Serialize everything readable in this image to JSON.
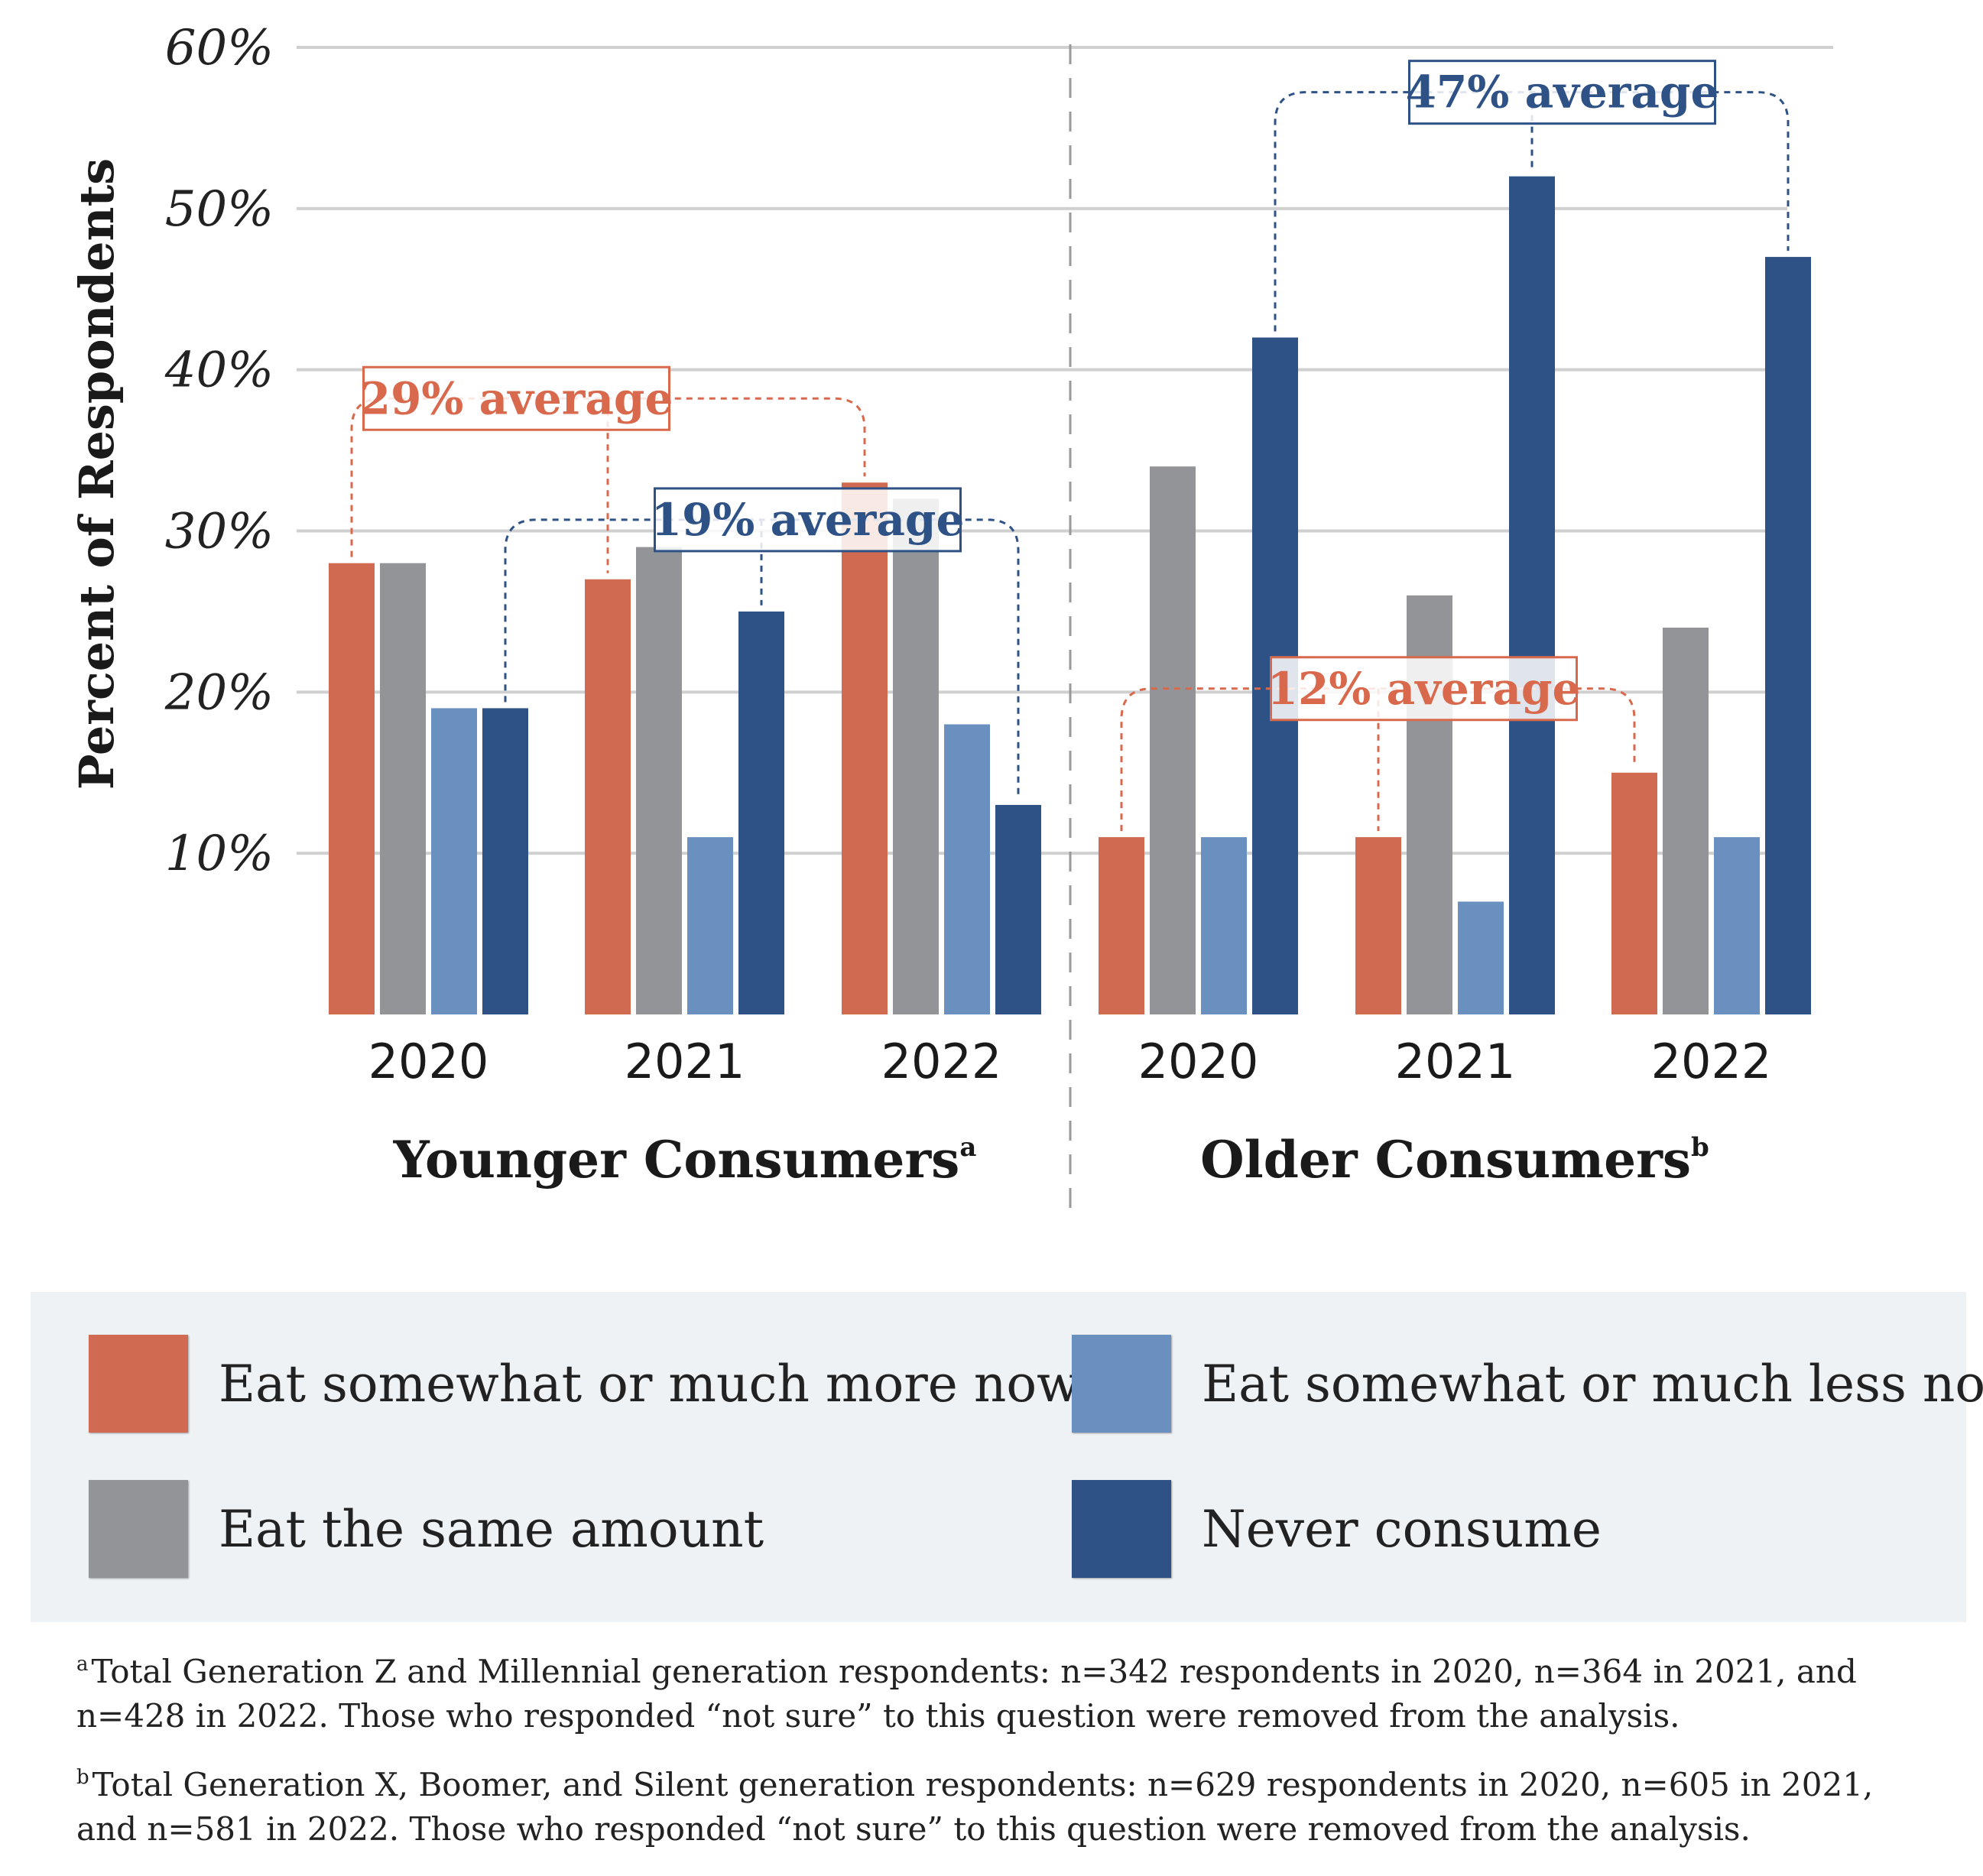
{
  "chart_data": {
    "type": "bar",
    "ylabel": "Percent of Respondents",
    "ylim": [
      0,
      60
    ],
    "yticks": [
      "10%",
      "20%",
      "30%",
      "40%",
      "50%",
      "60%"
    ],
    "grid": true,
    "groups": [
      {
        "label": "Younger Consumers",
        "footnote_mark": "a",
        "categories": [
          "2020",
          "2021",
          "2022"
        ],
        "series": [
          {
            "name": "Eat somewhat or much more now",
            "values": [
              28,
              27,
              33
            ]
          },
          {
            "name": "Eat the same amount",
            "values": [
              28,
              29,
              32
            ]
          },
          {
            "name": "Eat somewhat or much less now",
            "values": [
              19,
              11,
              18
            ]
          },
          {
            "name": "Never consume",
            "values": [
              19,
              25,
              13
            ]
          }
        ],
        "annotations": [
          {
            "text": "29% average",
            "series": 0
          },
          {
            "text": "19% average",
            "series": 3
          }
        ]
      },
      {
        "label": "Older Consumers",
        "footnote_mark": "b",
        "categories": [
          "2020",
          "2021",
          "2022"
        ],
        "series": [
          {
            "name": "Eat somewhat or much more now",
            "values": [
              11,
              11,
              15
            ]
          },
          {
            "name": "Eat the same amount",
            "values": [
              34,
              26,
              24
            ]
          },
          {
            "name": "Eat somewhat or much less now",
            "values": [
              11,
              7,
              11
            ]
          },
          {
            "name": "Never consume",
            "values": [
              42,
              52,
              47
            ]
          }
        ],
        "annotations": [
          {
            "text": "12% average",
            "series": 0
          },
          {
            "text": "47% average",
            "series": 3
          }
        ]
      }
    ],
    "colors": {
      "more": "#d06a50",
      "same": "#939497",
      "less": "#6a90c0",
      "never": "#2e5285",
      "orange_text": "#d9694c",
      "blue_text": "#2e5285",
      "grid": "#d0d0d0"
    }
  },
  "legend": [
    {
      "label": "Eat somewhat or much more now",
      "color": "#d06a50"
    },
    {
      "label": "Eat somewhat or much less now",
      "color": "#6a90c0"
    },
    {
      "label": "Eat the same amount",
      "color": "#939497"
    },
    {
      "label": "Never consume",
      "color": "#2e5285"
    }
  ],
  "footnotes": [
    {
      "mark": "a",
      "text": "Total Generation Z and Millennial generation respondents: n=342 respondents in 2020, n=364 in 2021, and n=428 in 2022. Those who responded “not sure” to this question were removed from the analysis."
    },
    {
      "mark": "b",
      "text": "Total Generation X, Boomer, and Silent generation respondents: n=629 respondents in 2020, n=605 in 2021, and n=581 in 2022. Those who responded “not sure” to this question were removed from the analysis."
    }
  ]
}
